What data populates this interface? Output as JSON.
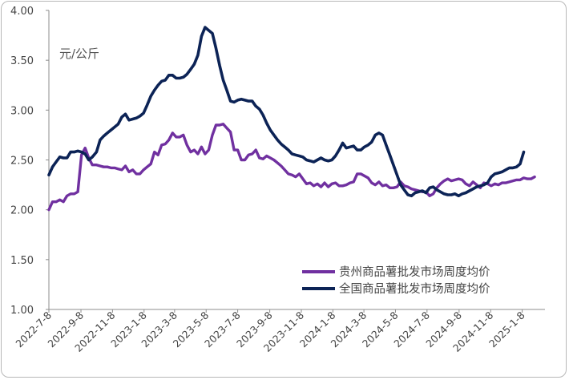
{
  "chart_data": {
    "type": "line",
    "unit_label": "元/公斤",
    "ylim": [
      1.0,
      4.0
    ],
    "y_ticks": [
      "1.00",
      "1.50",
      "2.00",
      "2.50",
      "3.00",
      "3.50",
      "4.00"
    ],
    "x_tick_labels": [
      "2022-7-8",
      "2022-9-8",
      "2022-11-8",
      "2023-1-8",
      "2023-3-8",
      "2023-5-8",
      "2023-7-8",
      "2023-9-8",
      "2023-11-8",
      "2024-1-8",
      "2024-3-8",
      "2024-5-8",
      "2024-7-8",
      "2024-9-8",
      "2024-11-8",
      "2025-1-8"
    ],
    "x_start": "2022-07-08",
    "x_end": "2025-02-21",
    "legend_position": "bottom-right",
    "grid": false,
    "series": [
      {
        "name": "贵州商品薯批发市场周度均价",
        "color": "#7030a0",
        "points": [
          [
            "2022-07-08",
            2.0
          ],
          [
            "2022-07-15",
            2.08
          ],
          [
            "2022-07-22",
            2.08
          ],
          [
            "2022-07-29",
            2.1
          ],
          [
            "2022-08-05",
            2.08
          ],
          [
            "2022-08-12",
            2.14
          ],
          [
            "2022-08-19",
            2.16
          ],
          [
            "2022-08-26",
            2.16
          ],
          [
            "2022-09-02",
            2.18
          ],
          [
            "2022-09-09",
            2.55
          ],
          [
            "2022-09-16",
            2.62
          ],
          [
            "2022-09-23",
            2.52
          ],
          [
            "2022-09-30",
            2.45
          ],
          [
            "2022-10-08",
            2.45
          ],
          [
            "2022-10-15",
            2.44
          ],
          [
            "2022-10-22",
            2.43
          ],
          [
            "2022-10-29",
            2.43
          ],
          [
            "2022-11-05",
            2.42
          ],
          [
            "2022-11-12",
            2.42
          ],
          [
            "2022-11-19",
            2.41
          ],
          [
            "2022-11-26",
            2.4
          ],
          [
            "2022-12-03",
            2.44
          ],
          [
            "2022-12-10",
            2.38
          ],
          [
            "2022-12-17",
            2.4
          ],
          [
            "2022-12-24",
            2.36
          ],
          [
            "2022-12-31",
            2.36
          ],
          [
            "2023-01-07",
            2.4
          ],
          [
            "2023-01-14",
            2.43
          ],
          [
            "2023-01-21",
            2.46
          ],
          [
            "2023-01-28",
            2.58
          ],
          [
            "2023-02-04",
            2.55
          ],
          [
            "2023-02-11",
            2.65
          ],
          [
            "2023-02-18",
            2.66
          ],
          [
            "2023-02-25",
            2.7
          ],
          [
            "2023-03-04",
            2.77
          ],
          [
            "2023-03-11",
            2.73
          ],
          [
            "2023-03-18",
            2.73
          ],
          [
            "2023-03-25",
            2.75
          ],
          [
            "2023-04-01",
            2.65
          ],
          [
            "2023-04-08",
            2.58
          ],
          [
            "2023-04-15",
            2.6
          ],
          [
            "2023-04-22",
            2.56
          ],
          [
            "2023-04-29",
            2.63
          ],
          [
            "2023-05-06",
            2.56
          ],
          [
            "2023-05-13",
            2.6
          ],
          [
            "2023-05-20",
            2.75
          ],
          [
            "2023-05-27",
            2.85
          ],
          [
            "2023-06-03",
            2.85
          ],
          [
            "2023-06-10",
            2.86
          ],
          [
            "2023-06-17",
            2.82
          ],
          [
            "2023-06-24",
            2.78
          ],
          [
            "2023-07-01",
            2.6
          ],
          [
            "2023-07-08",
            2.6
          ],
          [
            "2023-07-15",
            2.5
          ],
          [
            "2023-07-22",
            2.5
          ],
          [
            "2023-07-29",
            2.55
          ],
          [
            "2023-08-05",
            2.56
          ],
          [
            "2023-08-12",
            2.6
          ],
          [
            "2023-08-19",
            2.52
          ],
          [
            "2023-08-26",
            2.51
          ],
          [
            "2023-09-02",
            2.54
          ],
          [
            "2023-09-09",
            2.52
          ],
          [
            "2023-09-16",
            2.5
          ],
          [
            "2023-09-23",
            2.47
          ],
          [
            "2023-09-30",
            2.44
          ],
          [
            "2023-10-07",
            2.4
          ],
          [
            "2023-10-14",
            2.36
          ],
          [
            "2023-10-21",
            2.35
          ],
          [
            "2023-10-28",
            2.33
          ],
          [
            "2023-11-04",
            2.36
          ],
          [
            "2023-11-11",
            2.31
          ],
          [
            "2023-11-18",
            2.26
          ],
          [
            "2023-11-25",
            2.27
          ],
          [
            "2023-12-02",
            2.24
          ],
          [
            "2023-12-09",
            2.26
          ],
          [
            "2023-12-16",
            2.23
          ],
          [
            "2023-12-23",
            2.27
          ],
          [
            "2023-12-30",
            2.23
          ],
          [
            "2024-01-06",
            2.26
          ],
          [
            "2024-01-13",
            2.27
          ],
          [
            "2024-01-20",
            2.24
          ],
          [
            "2024-01-27",
            2.24
          ],
          [
            "2024-02-03",
            2.25
          ],
          [
            "2024-02-10",
            2.27
          ],
          [
            "2024-02-17",
            2.28
          ],
          [
            "2024-02-24",
            2.36
          ],
          [
            "2024-03-02",
            2.36
          ],
          [
            "2024-03-09",
            2.34
          ],
          [
            "2024-03-16",
            2.32
          ],
          [
            "2024-03-23",
            2.27
          ],
          [
            "2024-03-30",
            2.25
          ],
          [
            "2024-04-06",
            2.28
          ],
          [
            "2024-04-13",
            2.24
          ],
          [
            "2024-04-20",
            2.25
          ],
          [
            "2024-04-27",
            2.22
          ],
          [
            "2024-05-04",
            2.22
          ],
          [
            "2024-05-11",
            2.23
          ],
          [
            "2024-05-18",
            2.28
          ],
          [
            "2024-05-25",
            2.24
          ],
          [
            "2024-06-01",
            2.23
          ],
          [
            "2024-06-08",
            2.21
          ],
          [
            "2024-06-15",
            2.2
          ],
          [
            "2024-06-22",
            2.19
          ],
          [
            "2024-06-29",
            2.18
          ],
          [
            "2024-07-06",
            2.18
          ],
          [
            "2024-07-13",
            2.14
          ],
          [
            "2024-07-20",
            2.16
          ],
          [
            "2024-07-27",
            2.22
          ],
          [
            "2024-08-03",
            2.26
          ],
          [
            "2024-08-10",
            2.29
          ],
          [
            "2024-08-17",
            2.31
          ],
          [
            "2024-08-24",
            2.29
          ],
          [
            "2024-08-31",
            2.3
          ],
          [
            "2024-09-07",
            2.31
          ],
          [
            "2024-09-14",
            2.3
          ],
          [
            "2024-09-21",
            2.26
          ],
          [
            "2024-09-28",
            2.24
          ],
          [
            "2024-10-05",
            2.28
          ],
          [
            "2024-10-12",
            2.25
          ],
          [
            "2024-10-19",
            2.22
          ],
          [
            "2024-10-26",
            2.27
          ],
          [
            "2024-11-02",
            2.26
          ],
          [
            "2024-11-09",
            2.24
          ],
          [
            "2024-11-16",
            2.26
          ],
          [
            "2024-11-23",
            2.25
          ],
          [
            "2024-11-30",
            2.27
          ],
          [
            "2024-12-07",
            2.27
          ],
          [
            "2024-12-14",
            2.28
          ],
          [
            "2024-12-21",
            2.29
          ],
          [
            "2024-12-28",
            2.3
          ],
          [
            "2025-01-04",
            2.3
          ],
          [
            "2025-01-11",
            2.32
          ],
          [
            "2025-01-18",
            2.31
          ],
          [
            "2025-01-25",
            2.31
          ],
          [
            "2025-02-01",
            2.33
          ]
        ]
      },
      {
        "name": "全国商品薯批发市场周度均价",
        "color": "#0c2356",
        "points": [
          [
            "2022-07-08",
            2.35
          ],
          [
            "2022-07-15",
            2.43
          ],
          [
            "2022-07-22",
            2.48
          ],
          [
            "2022-07-29",
            2.53
          ],
          [
            "2022-08-05",
            2.52
          ],
          [
            "2022-08-12",
            2.52
          ],
          [
            "2022-08-19",
            2.58
          ],
          [
            "2022-08-26",
            2.58
          ],
          [
            "2022-09-02",
            2.59
          ],
          [
            "2022-09-09",
            2.58
          ],
          [
            "2022-09-16",
            2.56
          ],
          [
            "2022-09-23",
            2.5
          ],
          [
            "2022-09-30",
            2.53
          ],
          [
            "2022-10-08",
            2.58
          ],
          [
            "2022-10-15",
            2.7
          ],
          [
            "2022-10-22",
            2.74
          ],
          [
            "2022-10-29",
            2.77
          ],
          [
            "2022-11-05",
            2.8
          ],
          [
            "2022-11-12",
            2.83
          ],
          [
            "2022-11-19",
            2.86
          ],
          [
            "2022-11-26",
            2.93
          ],
          [
            "2022-12-03",
            2.96
          ],
          [
            "2022-12-10",
            2.9
          ],
          [
            "2022-12-17",
            2.91
          ],
          [
            "2022-12-24",
            2.92
          ],
          [
            "2022-12-31",
            2.94
          ],
          [
            "2023-01-07",
            2.97
          ],
          [
            "2023-01-14",
            3.05
          ],
          [
            "2023-01-21",
            3.14
          ],
          [
            "2023-01-28",
            3.2
          ],
          [
            "2023-02-04",
            3.25
          ],
          [
            "2023-02-11",
            3.29
          ],
          [
            "2023-02-18",
            3.3
          ],
          [
            "2023-02-25",
            3.35
          ],
          [
            "2023-03-04",
            3.35
          ],
          [
            "2023-03-11",
            3.32
          ],
          [
            "2023-03-18",
            3.32
          ],
          [
            "2023-03-25",
            3.33
          ],
          [
            "2023-04-01",
            3.36
          ],
          [
            "2023-04-08",
            3.41
          ],
          [
            "2023-04-15",
            3.46
          ],
          [
            "2023-04-22",
            3.55
          ],
          [
            "2023-04-29",
            3.74
          ],
          [
            "2023-05-06",
            3.83
          ],
          [
            "2023-05-13",
            3.8
          ],
          [
            "2023-05-20",
            3.77
          ],
          [
            "2023-05-27",
            3.62
          ],
          [
            "2023-06-03",
            3.45
          ],
          [
            "2023-06-10",
            3.3
          ],
          [
            "2023-06-17",
            3.2
          ],
          [
            "2023-06-24",
            3.09
          ],
          [
            "2023-07-01",
            3.08
          ],
          [
            "2023-07-08",
            3.1
          ],
          [
            "2023-07-15",
            3.11
          ],
          [
            "2023-07-22",
            3.1
          ],
          [
            "2023-07-29",
            3.09
          ],
          [
            "2023-08-05",
            3.09
          ],
          [
            "2023-08-12",
            3.04
          ],
          [
            "2023-08-19",
            3.01
          ],
          [
            "2023-08-26",
            2.95
          ],
          [
            "2023-09-02",
            2.87
          ],
          [
            "2023-09-09",
            2.8
          ],
          [
            "2023-09-16",
            2.75
          ],
          [
            "2023-09-23",
            2.7
          ],
          [
            "2023-09-30",
            2.66
          ],
          [
            "2023-10-07",
            2.63
          ],
          [
            "2023-10-14",
            2.6
          ],
          [
            "2023-10-21",
            2.56
          ],
          [
            "2023-10-28",
            2.55
          ],
          [
            "2023-11-04",
            2.54
          ],
          [
            "2023-11-11",
            2.53
          ],
          [
            "2023-11-18",
            2.5
          ],
          [
            "2023-11-25",
            2.49
          ],
          [
            "2023-12-02",
            2.48
          ],
          [
            "2023-12-09",
            2.5
          ],
          [
            "2023-12-16",
            2.52
          ],
          [
            "2023-12-23",
            2.5
          ],
          [
            "2023-12-30",
            2.49
          ],
          [
            "2024-01-06",
            2.5
          ],
          [
            "2024-01-13",
            2.54
          ],
          [
            "2024-01-20",
            2.6
          ],
          [
            "2024-01-27",
            2.67
          ],
          [
            "2024-02-03",
            2.62
          ],
          [
            "2024-02-10",
            2.63
          ],
          [
            "2024-02-17",
            2.64
          ],
          [
            "2024-02-24",
            2.6
          ],
          [
            "2024-03-02",
            2.6
          ],
          [
            "2024-03-09",
            2.63
          ],
          [
            "2024-03-16",
            2.65
          ],
          [
            "2024-03-23",
            2.68
          ],
          [
            "2024-03-30",
            2.75
          ],
          [
            "2024-04-06",
            2.77
          ],
          [
            "2024-04-13",
            2.75
          ],
          [
            "2024-04-20",
            2.65
          ],
          [
            "2024-04-27",
            2.55
          ],
          [
            "2024-05-04",
            2.45
          ],
          [
            "2024-05-11",
            2.35
          ],
          [
            "2024-05-18",
            2.25
          ],
          [
            "2024-05-25",
            2.2
          ],
          [
            "2024-06-01",
            2.15
          ],
          [
            "2024-06-08",
            2.14
          ],
          [
            "2024-06-15",
            2.17
          ],
          [
            "2024-06-22",
            2.18
          ],
          [
            "2024-06-29",
            2.19
          ],
          [
            "2024-07-06",
            2.17
          ],
          [
            "2024-07-13",
            2.22
          ],
          [
            "2024-07-20",
            2.23
          ],
          [
            "2024-07-27",
            2.2
          ],
          [
            "2024-08-03",
            2.18
          ],
          [
            "2024-08-10",
            2.16
          ],
          [
            "2024-08-17",
            2.15
          ],
          [
            "2024-08-24",
            2.15
          ],
          [
            "2024-08-31",
            2.16
          ],
          [
            "2024-09-07",
            2.14
          ],
          [
            "2024-09-14",
            2.16
          ],
          [
            "2024-09-21",
            2.17
          ],
          [
            "2024-09-28",
            2.19
          ],
          [
            "2024-10-05",
            2.21
          ],
          [
            "2024-10-12",
            2.23
          ],
          [
            "2024-10-19",
            2.24
          ],
          [
            "2024-10-26",
            2.25
          ],
          [
            "2024-11-02",
            2.27
          ],
          [
            "2024-11-09",
            2.33
          ],
          [
            "2024-11-16",
            2.36
          ],
          [
            "2024-11-23",
            2.37
          ],
          [
            "2024-11-30",
            2.38
          ],
          [
            "2024-12-07",
            2.4
          ],
          [
            "2024-12-14",
            2.42
          ],
          [
            "2024-12-21",
            2.42
          ],
          [
            "2024-12-28",
            2.43
          ],
          [
            "2025-01-04",
            2.46
          ],
          [
            "2025-01-11",
            2.58
          ]
        ]
      }
    ]
  }
}
